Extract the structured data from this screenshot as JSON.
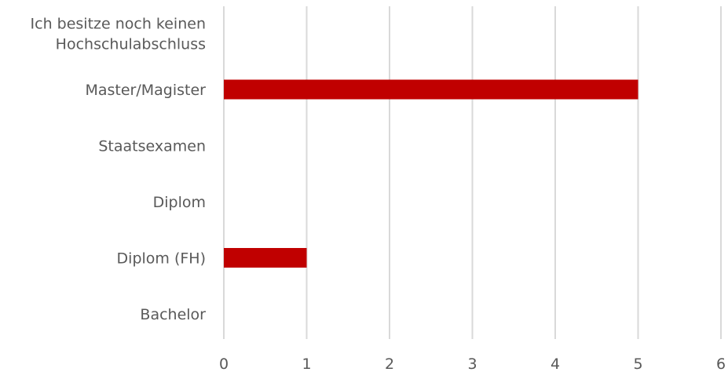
{
  "chart_data": {
    "type": "bar",
    "orientation": "horizontal",
    "categories": [
      "Ich besitze noch keinen Hochschulabschluss",
      "Master/Magister",
      "Staatsexamen",
      "Diplom",
      "Diplom (FH)",
      "Bachelor"
    ],
    "category_label_lines": [
      [
        "Ich besitze noch keinen",
        "Hochschulabschluss"
      ],
      [
        "Master/Magister"
      ],
      [
        "Staatsexamen"
      ],
      [
        "Diplom"
      ],
      [
        "Diplom (FH)"
      ],
      [
        "Bachelor"
      ]
    ],
    "values": [
      0,
      5,
      0,
      0,
      1,
      0
    ],
    "xlim": [
      0,
      6
    ],
    "xticks": [
      0,
      1,
      2,
      3,
      4,
      5,
      6
    ],
    "grid": true,
    "legend": "none",
    "bar_color": "#C00000",
    "grid_color": "#D9D9D9",
    "text_color": "#595959"
  }
}
